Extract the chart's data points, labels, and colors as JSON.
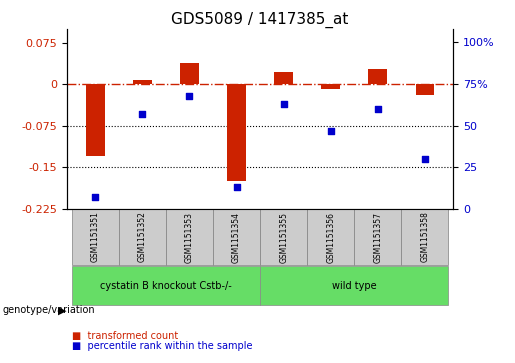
{
  "title": "GDS5089 / 1417385_at",
  "samples": [
    "GSM1151351",
    "GSM1151352",
    "GSM1151353",
    "GSM1151354",
    "GSM1151355",
    "GSM1151356",
    "GSM1151357",
    "GSM1151358"
  ],
  "transformed_count": [
    -0.13,
    0.008,
    0.038,
    -0.175,
    0.022,
    -0.008,
    0.028,
    -0.02
  ],
  "percentile_rank": [
    7,
    57,
    68,
    13,
    63,
    47,
    60,
    30
  ],
  "ylim_left": [
    -0.225,
    0.1
  ],
  "ylim_right": [
    0,
    108
  ],
  "yticks_left": [
    0.075,
    0,
    -0.075,
    -0.15,
    -0.225
  ],
  "yticks_right": [
    100,
    75,
    50,
    25,
    0
  ],
  "yticks_right_labels": [
    "100%",
    "75%",
    "50",
    "25",
    "0"
  ],
  "bar_color": "#cc2200",
  "dot_color": "#0000cc",
  "dashed_line_color": "#cc2200",
  "dotted_line_color": "#000000",
  "group1_label": "cystatin B knockout Cstb-/-",
  "group2_label": "wild type",
  "group_color": "#66dd66",
  "legend_label1": "transformed count",
  "legend_label2": "percentile rank within the sample",
  "genotype_label": "genotype/variation",
  "title_fontsize": 11,
  "tick_fontsize": 8,
  "label_fontsize": 8,
  "sample_box_color": "#cccccc",
  "bar_width": 0.4
}
